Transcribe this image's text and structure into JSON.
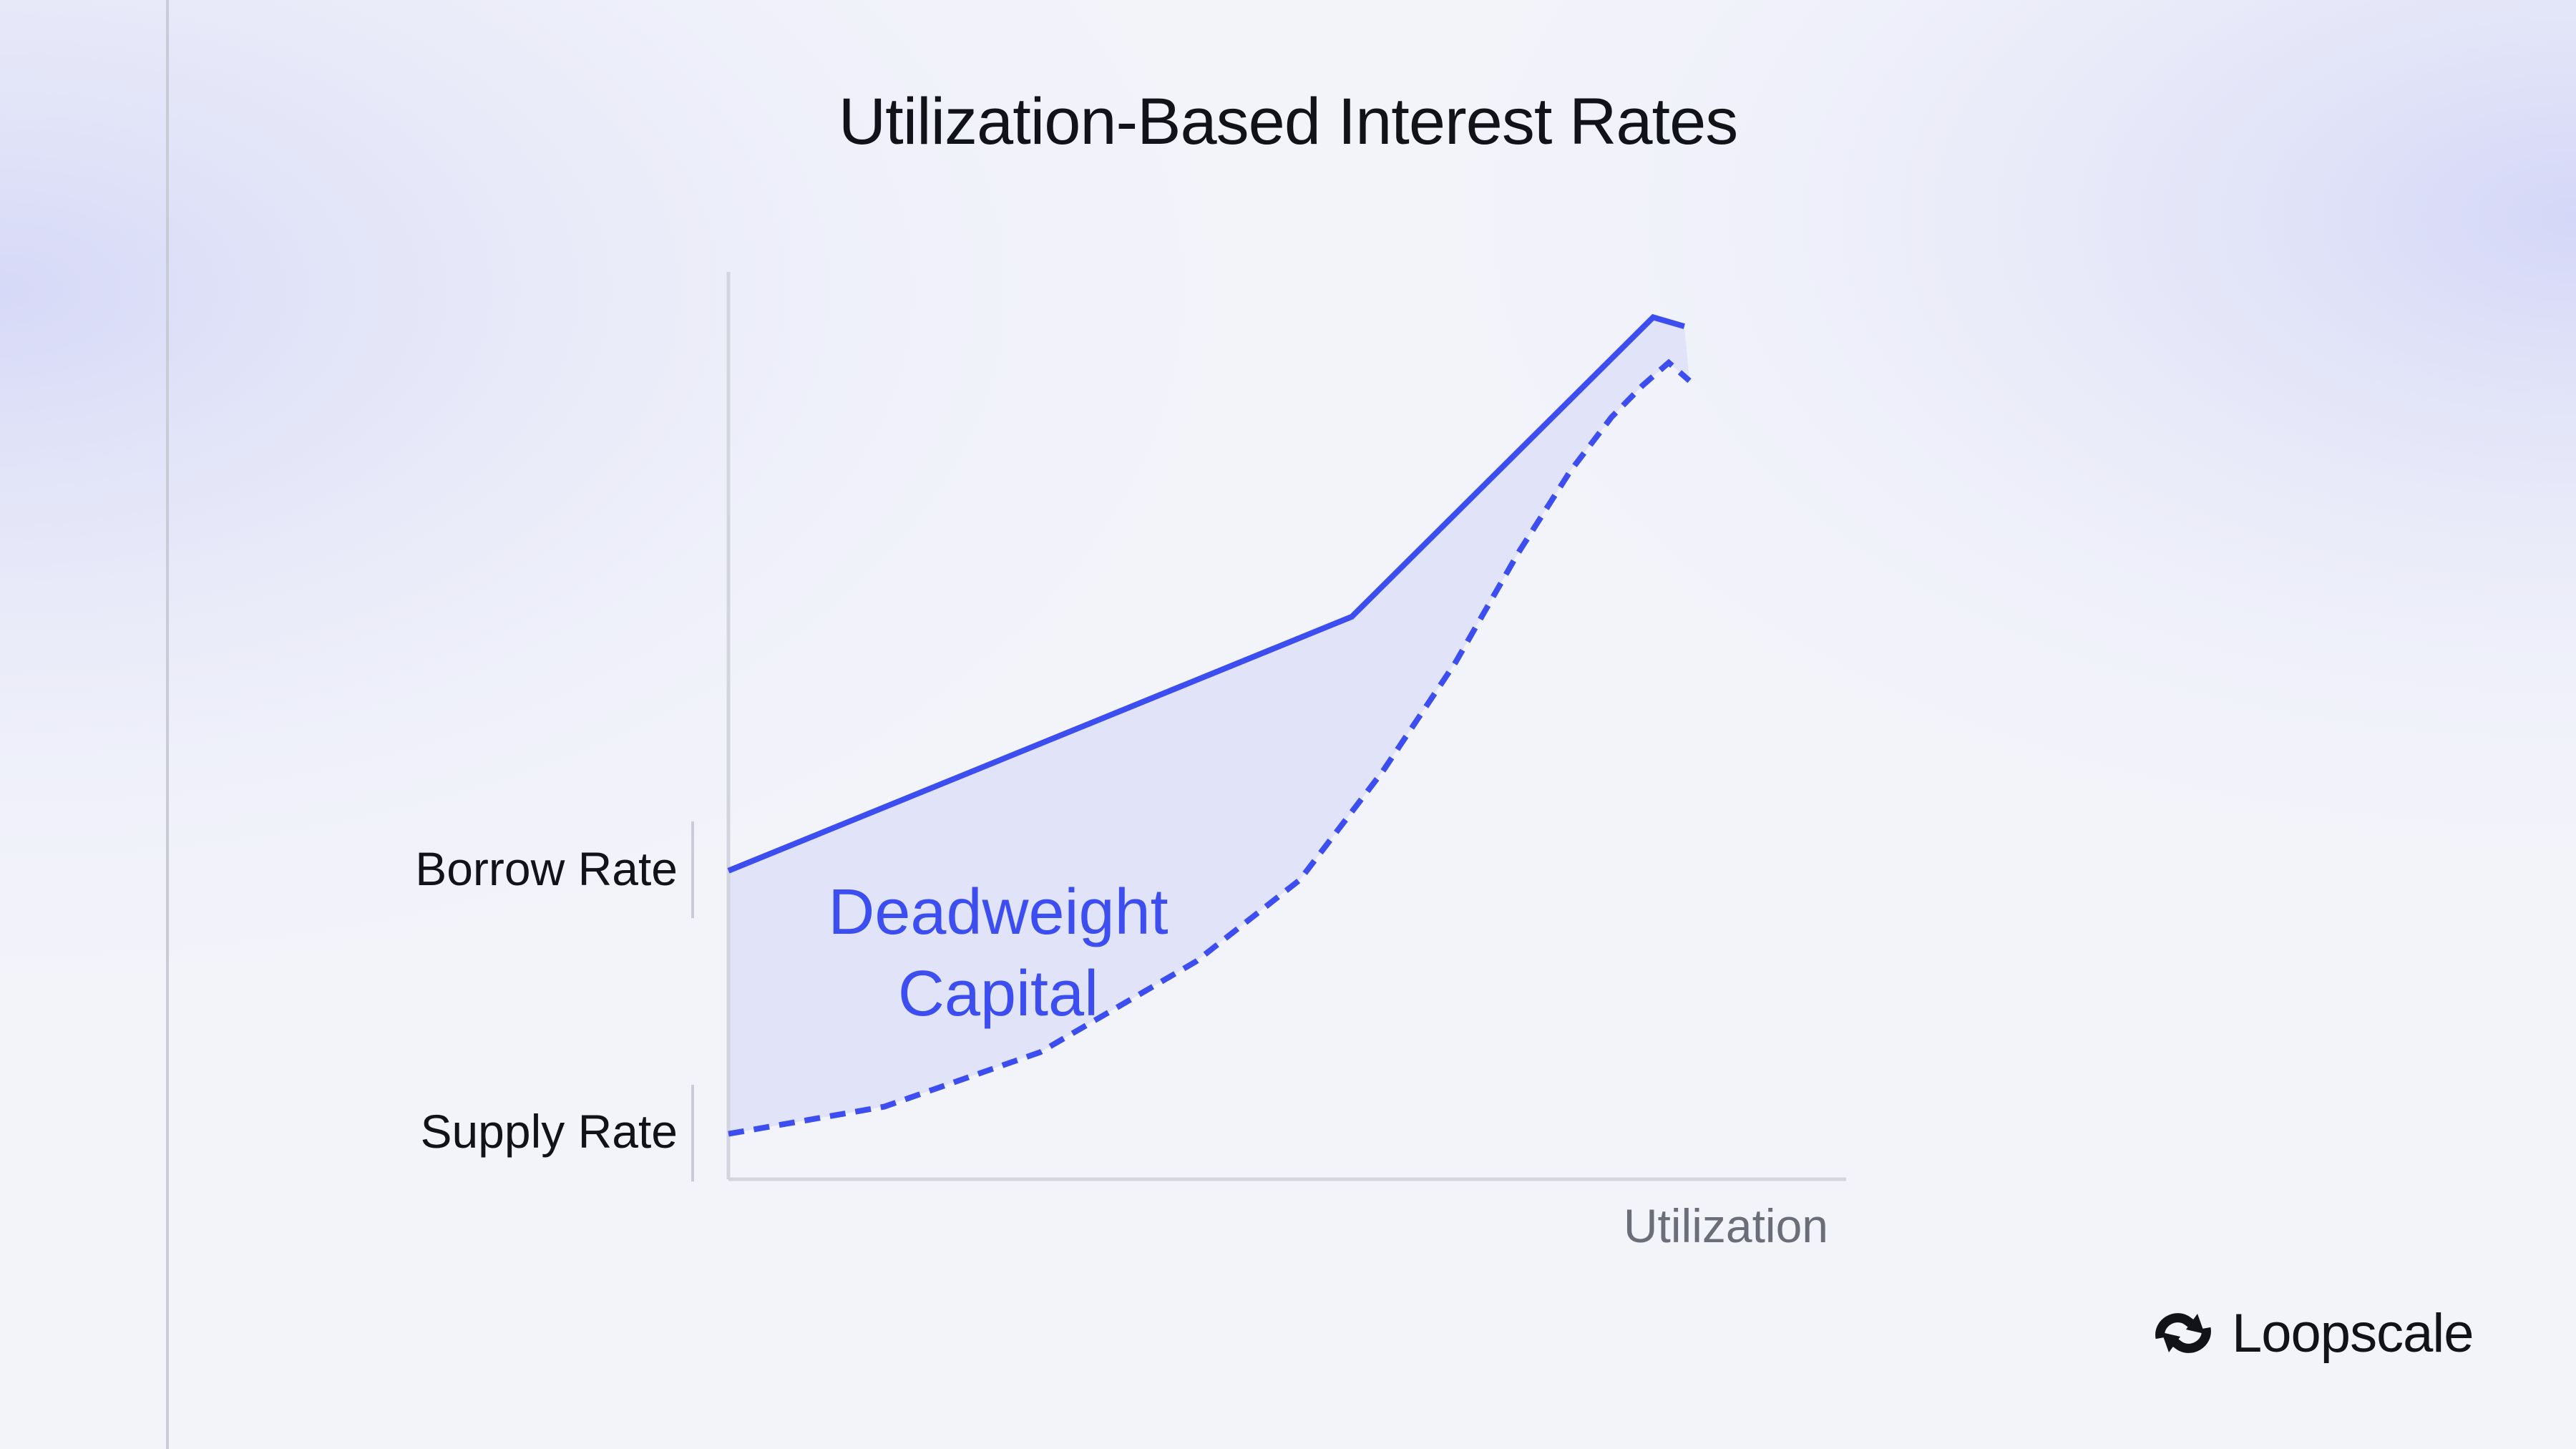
{
  "title": "Utilization-Based Interest Rates",
  "brand": {
    "name": "Loopscale",
    "icon": "loop-logo-icon"
  },
  "colors": {
    "line": "#3d4ef0",
    "area": "#e1e3f9",
    "axis": "#d3d5de",
    "text": "#111318",
    "muted": "#6b6e78"
  },
  "chart_data": {
    "type": "area",
    "title": "Utilization-Based Interest Rates",
    "xlabel": "Utilization",
    "ylabel": "",
    "y_tick_labels": [
      "Borrow Rate",
      "Supply Rate"
    ],
    "annotation": "Deadweight Capital",
    "xlim": [
      0,
      100
    ],
    "ylim": [
      0,
      100
    ],
    "grid": false,
    "series": [
      {
        "name": "Borrow Rate",
        "style": "solid",
        "x": [
          0,
          60,
          89,
          92
        ],
        "y": [
          34,
          62,
          95,
          94
        ]
      },
      {
        "name": "Supply Rate",
        "style": "dashed",
        "x": [
          0,
          15,
          30,
          45,
          55,
          63,
          70,
          76,
          81,
          85,
          88,
          90.5,
          92.5
        ],
        "y": [
          5,
          8,
          14,
          24,
          33,
          45,
          57,
          69,
          78,
          84,
          87.5,
          90,
          88
        ]
      }
    ]
  }
}
